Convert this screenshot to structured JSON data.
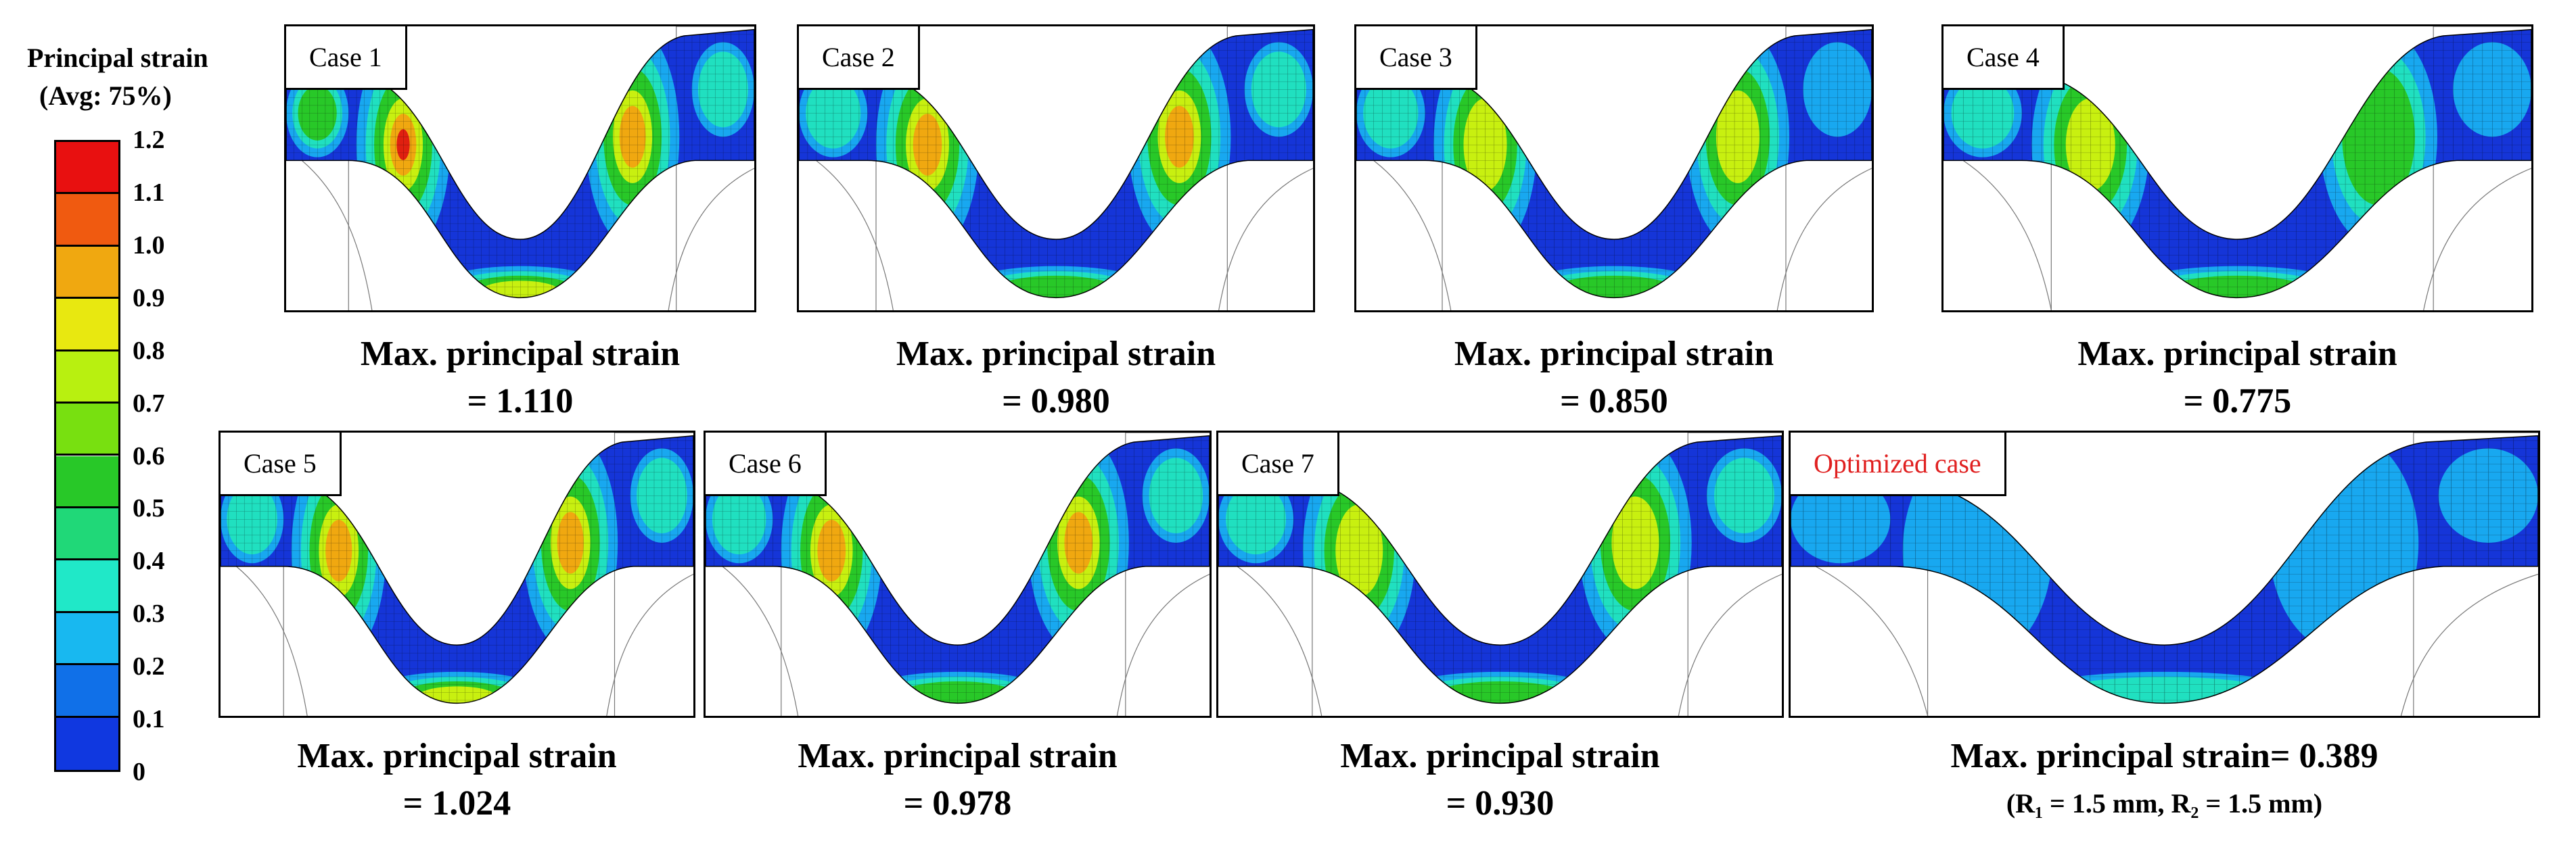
{
  "legend": {
    "title": "Principal strain",
    "subtitle": "(Avg: 75%)",
    "labels": [
      "1.2",
      "1.1",
      "1.0",
      "0.9",
      "0.8",
      "0.7",
      "0.6",
      "0.5",
      "0.4",
      "0.3",
      "0.2",
      "0.1",
      "0"
    ],
    "colors": [
      "#e81010",
      "#f05a10",
      "#f0a810",
      "#e8e810",
      "#b8f010",
      "#78e010",
      "#28c828",
      "#20d878",
      "#20e8c8",
      "#18b8f0",
      "#1070e8",
      "#1038e0"
    ]
  },
  "panels": [
    {
      "label": "Case 1",
      "caption": [
        "Max. principal strain",
        "= 1.110"
      ]
    },
    {
      "label": "Case 2",
      "caption": [
        "Max. principal strain",
        "= 0.980"
      ]
    },
    {
      "label": "Case 3",
      "caption": [
        "Max. principal strain",
        "= 0.850"
      ]
    },
    {
      "label": "Case 4",
      "caption": [
        "Max. principal strain",
        "= 0.775"
      ]
    },
    {
      "label": "Case 5",
      "caption": [
        "Max. principal strain",
        "= 1.024"
      ]
    },
    {
      "label": "Case 6",
      "caption": [
        "Max. principal strain",
        "= 0.978"
      ]
    },
    {
      "label": "Case 7",
      "caption": [
        "Max. principal strain",
        "= 0.930"
      ]
    },
    {
      "label": "Optimized case",
      "caption": [
        "Max. principal strain= 0.389",
        "(R₁ = 1.5 mm, R₂ = 1.5 mm)"
      ]
    }
  ]
}
